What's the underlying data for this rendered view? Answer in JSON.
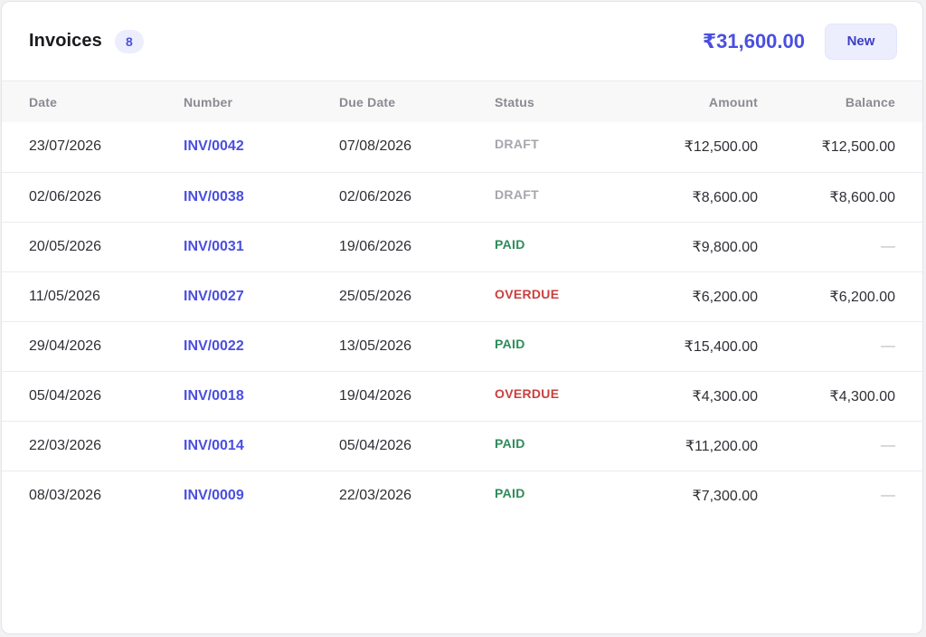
{
  "header": {
    "title": "Invoices",
    "count": "8",
    "total": "₹31,600.00",
    "new_label": "New"
  },
  "colors": {
    "accent": "#4a4fe0",
    "paid": "#2e8b5a",
    "overdue": "#c8403f",
    "draft": "#a6a6ad"
  },
  "table": {
    "columns": [
      "Date",
      "Number",
      "Due Date",
      "Status",
      "Amount",
      "Balance"
    ],
    "rows": [
      {
        "date": "23/07/2026",
        "number": "INV/0042",
        "due": "07/08/2026",
        "status": "DRAFT",
        "status_kind": "draft",
        "amount": "₹12,500.00",
        "balance": "₹12,500.00"
      },
      {
        "date": "02/06/2026",
        "number": "INV/0038",
        "due": "02/06/2026",
        "status": "DRAFT",
        "status_kind": "draft",
        "amount": "₹8,600.00",
        "balance": "₹8,600.00"
      },
      {
        "date": "20/05/2026",
        "number": "INV/0031",
        "due": "19/06/2026",
        "status": "PAID",
        "status_kind": "paid",
        "amount": "₹9,800.00",
        "balance": "—"
      },
      {
        "date": "11/05/2026",
        "number": "INV/0027",
        "due": "25/05/2026",
        "status": "OVERDUE",
        "status_kind": "overdue",
        "amount": "₹6,200.00",
        "balance": "₹6,200.00"
      },
      {
        "date": "29/04/2026",
        "number": "INV/0022",
        "due": "13/05/2026",
        "status": "PAID",
        "status_kind": "paid",
        "amount": "₹15,400.00",
        "balance": "—"
      },
      {
        "date": "05/04/2026",
        "number": "INV/0018",
        "due": "19/04/2026",
        "status": "OVERDUE",
        "status_kind": "overdue",
        "amount": "₹4,300.00",
        "balance": "₹4,300.00"
      },
      {
        "date": "22/03/2026",
        "number": "INV/0014",
        "due": "05/04/2026",
        "status": "PAID",
        "status_kind": "paid",
        "amount": "₹11,200.00",
        "balance": "—"
      },
      {
        "date": "08/03/2026",
        "number": "INV/0009",
        "due": "22/03/2026",
        "status": "PAID",
        "status_kind": "paid",
        "amount": "₹7,300.00",
        "balance": "—"
      }
    ]
  }
}
